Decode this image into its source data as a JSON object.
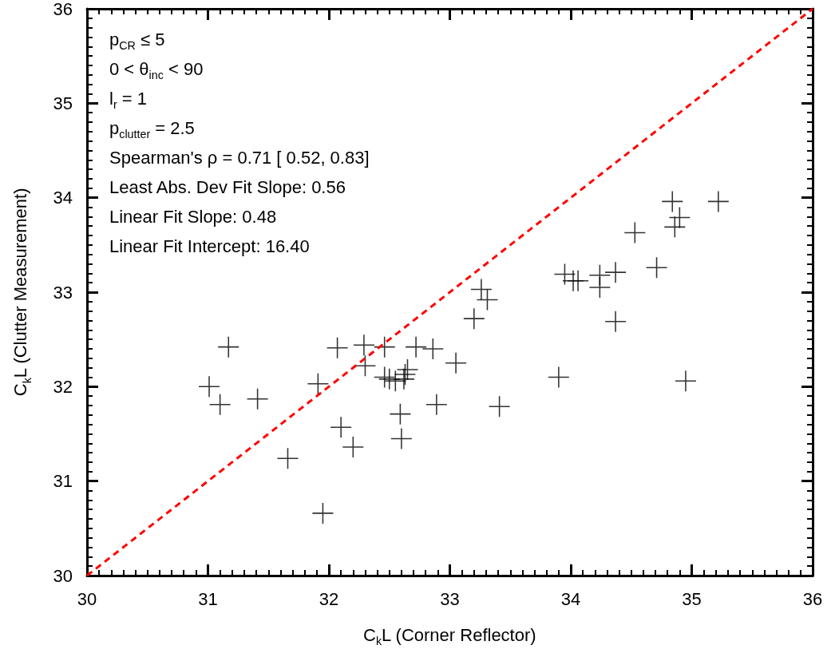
{
  "chart_data": {
    "type": "scatter",
    "xlabel": "C$_{k}$L (Corner Reflector)",
    "ylabel": "C$_{k}$L (Clutter Measurement)",
    "annotations": [
      "p$_{CR}$ ≤ 5",
      "0 < θ$_{inc}$ < 90",
      "l$_{r}$ = 1",
      "p$_{clutter}$ = 2.5",
      "Spearman's ρ = 0.71 [ 0.52,  0.83]",
      "Least Abs. Dev Fit Slope: 0.56",
      "Linear Fit Slope: 0.48",
      "Linear Fit Intercept: 16.40"
    ],
    "xlim": [
      30,
      36
    ],
    "xticks": [
      30,
      31,
      32,
      33,
      34,
      35,
      36
    ],
    "ylim": [
      30,
      36
    ],
    "yticks": [
      30,
      31,
      32,
      33,
      34,
      35,
      36
    ],
    "marker": "cross",
    "series": [
      {
        "color": "#000000",
        "x": [
          31.17,
          31.01,
          31.1,
          31.41,
          31.91,
          32.07,
          32.29,
          32.3,
          32.46,
          32.46,
          32.5,
          32.55,
          32.62,
          32.63,
          32.65,
          32.72,
          32.86,
          32.89,
          32.1,
          32.2,
          32.59,
          32.6,
          31.66,
          31.95,
          33.05,
          33.26,
          33.31,
          33.2,
          33.41,
          33.9,
          33.95,
          34.02,
          34.06,
          34.24,
          34.24,
          34.37,
          34.37,
          34.53,
          34.71,
          34.84,
          34.86,
          34.9,
          35.22,
          34.95
        ],
        "values": [
          32.42,
          32.0,
          31.81,
          31.87,
          32.03,
          32.41,
          32.44,
          32.22,
          32.42,
          32.1,
          32.08,
          32.06,
          32.08,
          32.13,
          32.18,
          32.42,
          32.4,
          31.81,
          31.57,
          31.36,
          31.71,
          31.45,
          31.24,
          30.66,
          32.25,
          33.03,
          32.92,
          32.72,
          31.79,
          32.1,
          33.19,
          33.12,
          33.12,
          33.18,
          33.05,
          33.21,
          32.69,
          33.63,
          33.26,
          33.96,
          33.69,
          33.79,
          33.96,
          32.06
        ]
      },
      {
        "type": "line",
        "color": "#ff0000",
        "line_style": "dashed",
        "marker": "none",
        "x": [
          30,
          36
        ],
        "values": [
          30,
          36
        ]
      }
    ]
  }
}
